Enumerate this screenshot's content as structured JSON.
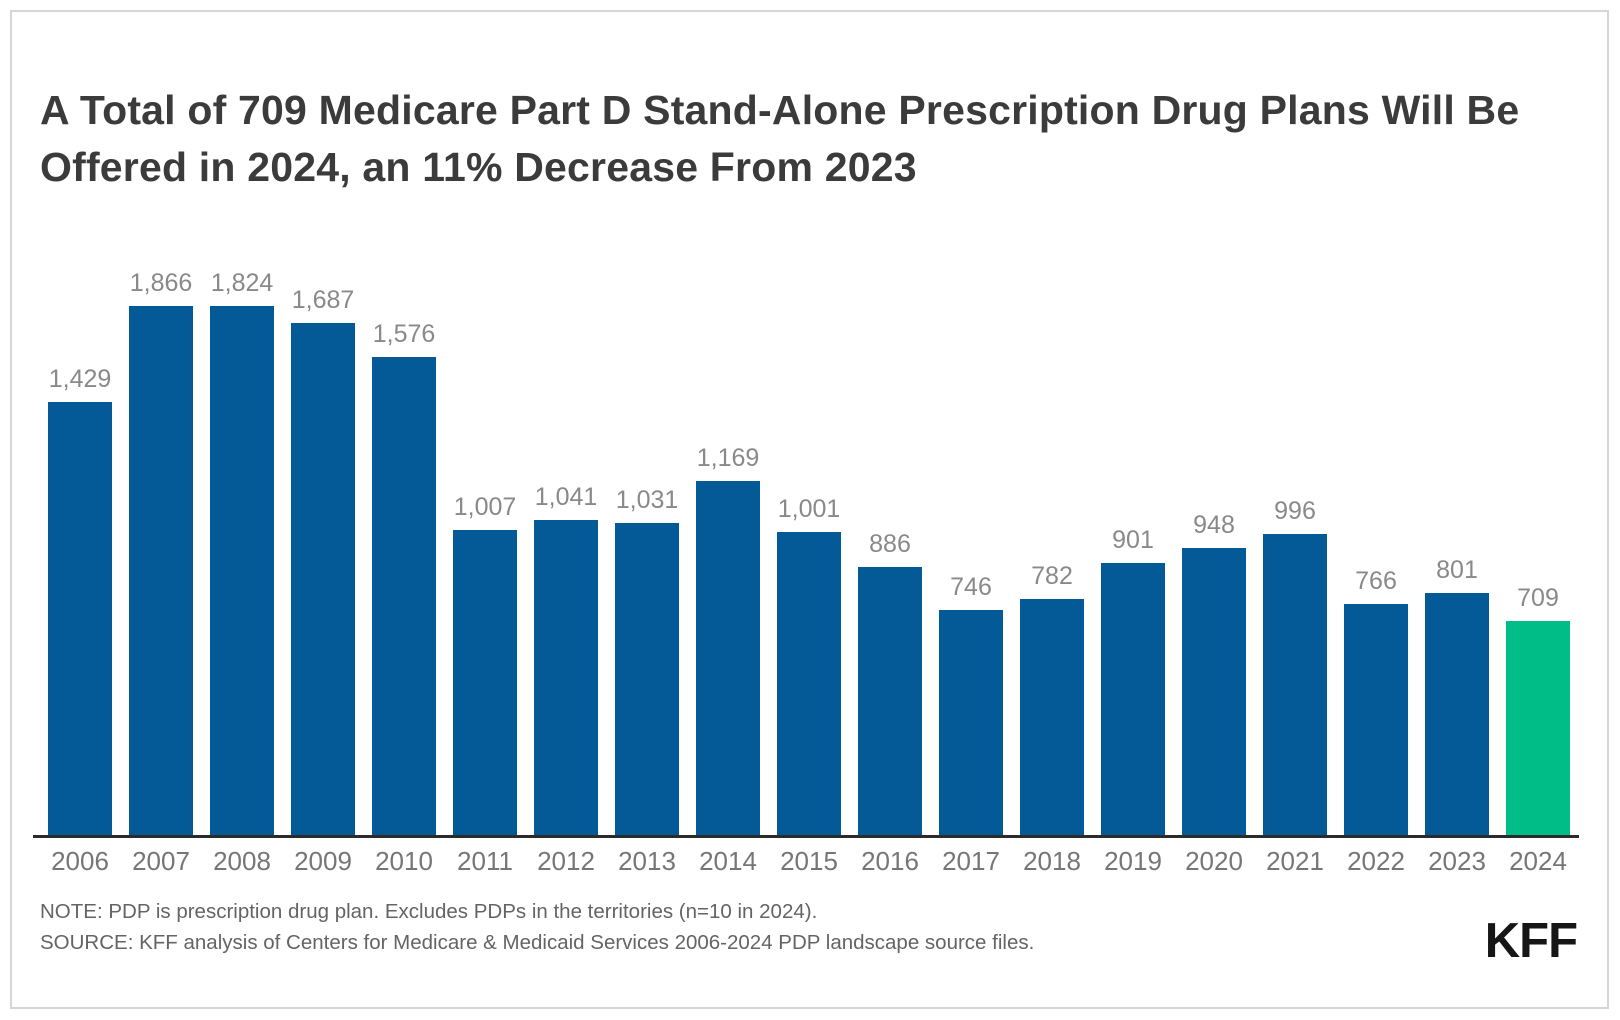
{
  "title": "A Total of 709 Medicare Part D Stand-Alone Prescription Drug Plans Will Be Offered in 2024, an 11% Decrease From 2023",
  "chart_data": {
    "type": "bar",
    "categories": [
      "2006",
      "2007",
      "2008",
      "2009",
      "2010",
      "2011",
      "2012",
      "2013",
      "2014",
      "2015",
      "2016",
      "2017",
      "2018",
      "2019",
      "2020",
      "2021",
      "2022",
      "2023",
      "2024"
    ],
    "values": [
      1429,
      1866,
      1824,
      1687,
      1576,
      1007,
      1041,
      1031,
      1169,
      1001,
      886,
      746,
      782,
      901,
      948,
      996,
      766,
      801,
      709
    ],
    "value_labels": [
      "1,429",
      "1,866",
      "1,824",
      "1,687",
      "1,576",
      "1,007",
      "1,041",
      "1,031",
      "1,169",
      "1,001",
      "886",
      "746",
      "782",
      "901",
      "948",
      "996",
      "766",
      "801",
      "709"
    ],
    "title": "A Total of 709 Medicare Part D Stand-Alone Prescription Drug Plans Will Be Offered in 2024, an 11% Decrease From 2023",
    "xlabel": "",
    "ylabel": "",
    "ylim": [
      0,
      1900
    ],
    "grid": false,
    "legend": false,
    "bar_color": "#045a96",
    "highlight_color": "#00bc87",
    "highlight_category": "2024",
    "axis_color": "#2b2b2b"
  },
  "note": "NOTE: PDP is prescription drug plan. Excludes PDPs in the territories (n=10 in 2024).",
  "source": "SOURCE: KFF analysis of Centers for Medicare & Medicaid Services 2006-2024 PDP landscape source files.",
  "logo": "KFF"
}
